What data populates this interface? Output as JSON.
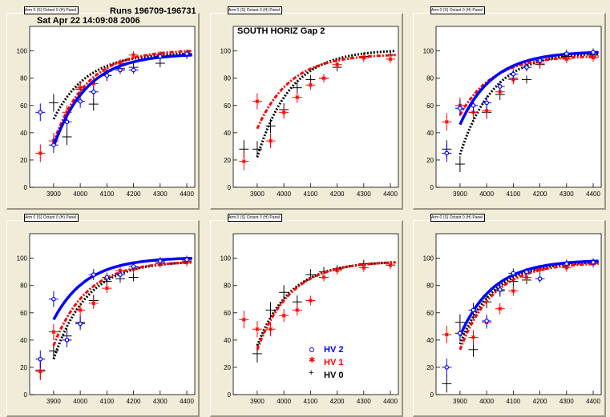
{
  "header": {
    "runs": "Runs 196709-196731",
    "date": "Sat Apr 22 14:09:08 2006",
    "panel2_label": "SOUTH HORIZ Gap 2"
  },
  "legend": [
    {
      "label": "HV 2",
      "color": "#0000ff",
      "marker": "circle"
    },
    {
      "label": "HV 1",
      "color": "#ff0000",
      "marker": "star"
    },
    {
      "label": "HV 0",
      "color": "#000000",
      "marker": "plus"
    }
  ],
  "colors": {
    "hv2": "#0000ff",
    "hv1": "#ff0000",
    "hv0": "#000000",
    "background": "#f0ecd8"
  },
  "chart_data": [
    {
      "type": "scatter",
      "title": "Arm 0 (S) Octant 0 (H) Panel 0",
      "xlim": [
        3810,
        4430
      ],
      "ylim": [
        0,
        118
      ],
      "xticks": [
        3900,
        4000,
        4100,
        4200,
        4300,
        4400
      ],
      "yticks": [
        0,
        20,
        40,
        60,
        80,
        100
      ],
      "series": [
        {
          "name": "HV 2",
          "x": [
            3850,
            3900,
            3950,
            4000,
            4050,
            4100,
            4150,
            4200,
            4300,
            4400
          ],
          "y": [
            55,
            31,
            48,
            63,
            70,
            82,
            86,
            86,
            96,
            98
          ],
          "fit": [
            3900,
            4420,
            30,
            97
          ]
        },
        {
          "name": "HV 1",
          "x": [
            3850,
            3900,
            3950,
            4000,
            4050,
            4100,
            4150,
            4200,
            4300,
            4400
          ],
          "y": [
            25,
            34,
            55,
            73,
            76,
            85,
            91,
            97,
            97,
            98
          ],
          "fit": [
            3900,
            4420,
            33,
            100
          ]
        },
        {
          "name": "HV 0",
          "x": [
            3900,
            3950,
            4000,
            4050,
            4100,
            4150,
            4200,
            4300,
            4400
          ],
          "y": [
            62,
            37,
            72,
            61,
            82,
            87,
            88,
            91,
            97
          ],
          "fit": [
            3900,
            4420,
            50,
            98
          ]
        }
      ]
    },
    {
      "type": "scatter",
      "title": "Arm 0 (S) Octant 0 (H) Panel 1",
      "xlim": [
        3810,
        4430
      ],
      "ylim": [
        0,
        118
      ],
      "xticks": [
        3900,
        4000,
        4100,
        4200,
        4300,
        4400
      ],
      "yticks": [
        0,
        20,
        40,
        60,
        80,
        100
      ],
      "series": [
        {
          "name": "HV 2",
          "x": [],
          "y": [],
          "fit": null
        },
        {
          "name": "HV 1",
          "x": [
            3850,
            3900,
            3950,
            4000,
            4050,
            4100,
            4150,
            4200,
            4300,
            4400
          ],
          "y": [
            19,
            63,
            34,
            55,
            66,
            75,
            80,
            90,
            95,
            94
          ],
          "fit": [
            3900,
            4420,
            43,
            97
          ]
        },
        {
          "name": "HV 0",
          "x": [
            3850,
            3900,
            3950,
            4000,
            4050,
            4100,
            4150,
            4200,
            4300,
            4400
          ],
          "y": [
            28,
            28,
            45,
            57,
            73,
            79,
            80,
            88,
            96,
            97
          ],
          "fit": [
            3900,
            4420,
            22,
            100
          ]
        }
      ]
    },
    {
      "type": "scatter",
      "title": "Arm 0 (S) Octant 0 (H) Panel 2",
      "xlim": [
        3810,
        4430
      ],
      "ylim": [
        0,
        118
      ],
      "xticks": [
        3900,
        4000,
        4100,
        4200,
        4300,
        4400
      ],
      "yticks": [
        0,
        20,
        40,
        60,
        80,
        100
      ],
      "series": [
        {
          "name": "HV 2",
          "x": [
            3850,
            3900,
            3950,
            4000,
            4050,
            4100,
            4150,
            4200,
            4300,
            4400
          ],
          "y": [
            25,
            58,
            60,
            62,
            74,
            83,
            88,
            93,
            98,
            99
          ],
          "fit": [
            3900,
            4420,
            46,
            99
          ]
        },
        {
          "name": "HV 1",
          "x": [
            3850,
            3900,
            3950,
            4000,
            4050,
            4100,
            4150,
            4200,
            4300,
            4400
          ],
          "y": [
            48,
            60,
            55,
            56,
            70,
            79,
            88,
            91,
            94,
            95
          ],
          "fit": [
            3900,
            4420,
            53,
            96
          ]
        },
        {
          "name": "HV 0",
          "x": [
            3850,
            3900,
            3950,
            4000,
            4050,
            4100,
            4150,
            4200,
            4300,
            4400
          ],
          "y": [
            28,
            17,
            55,
            55,
            68,
            80,
            79,
            90,
            96,
            97
          ],
          "fit": [
            3900,
            4420,
            24,
            98
          ]
        }
      ]
    },
    {
      "type": "scatter",
      "title": "Arm 0 (S) Octant 0 (H) Panel 5",
      "xlim": [
        3810,
        4430
      ],
      "ylim": [
        0,
        118
      ],
      "xticks": [
        3900,
        4000,
        4100,
        4200,
        4300,
        4400
      ],
      "yticks": [
        0,
        20,
        40,
        60,
        80,
        100
      ],
      "series": [
        {
          "name": "HV 2",
          "x": [
            3850,
            3900,
            3950,
            4000,
            4050,
            4100,
            4150,
            4200,
            4300,
            4400
          ],
          "y": [
            26,
            70,
            40,
            52,
            88,
            86,
            88,
            94,
            98,
            99
          ],
          "fit": [
            3900,
            4420,
            55,
            100
          ]
        },
        {
          "name": "HV 1",
          "x": [
            3850,
            3900,
            3950,
            4000,
            4050,
            4100,
            4150,
            4200,
            4300,
            4400
          ],
          "y": [
            17,
            46,
            40,
            62,
            67,
            78,
            91,
            92,
            96,
            97
          ],
          "fit": [
            3900,
            4420,
            36,
            97
          ]
        },
        {
          "name": "HV 0",
          "x": [
            3850,
            3900,
            3950,
            4000,
            4050,
            4100,
            4150,
            4200,
            4300,
            4400
          ],
          "y": [
            18,
            32,
            43,
            53,
            69,
            83,
            85,
            86,
            97,
            98
          ],
          "fit": [
            3900,
            4420,
            26,
            97
          ]
        }
      ]
    },
    {
      "type": "scatter",
      "title": "Arm 0 (S) Octant 0 (H) Panel 4",
      "xlim": [
        3810,
        4430
      ],
      "ylim": [
        0,
        118
      ],
      "xticks": [
        3900,
        4000,
        4100,
        4200,
        4300,
        4400
      ],
      "yticks": [
        0,
        20,
        40,
        60,
        80,
        100
      ],
      "series": [
        {
          "name": "HV 2",
          "x": [],
          "y": [],
          "fit": null
        },
        {
          "name": "HV 1",
          "x": [
            3850,
            3900,
            3950,
            4000,
            4050,
            4100,
            4150,
            4200,
            4300,
            4400
          ],
          "y": [
            55,
            48,
            48,
            58,
            62,
            69,
            86,
            91,
            93,
            95
          ],
          "fit": [
            3900,
            4420,
            33,
            97
          ]
        },
        {
          "name": "HV 0",
          "x": [
            3900,
            3950,
            4000,
            4050,
            4100,
            4150,
            4200,
            4300,
            4400
          ],
          "y": [
            30,
            62,
            75,
            68,
            88,
            90,
            92,
            96,
            95
          ],
          "fit": [
            3900,
            4420,
            36,
            97
          ]
        }
      ]
    },
    {
      "type": "scatter",
      "title": "Arm 0 (S) Octant 0 (H) Panel 3",
      "xlim": [
        3810,
        4430
      ],
      "ylim": [
        0,
        118
      ],
      "xticks": [
        3900,
        4000,
        4100,
        4200,
        4300,
        4400
      ],
      "yticks": [
        0,
        20,
        40,
        60,
        80,
        100
      ],
      "series": [
        {
          "name": "HV 2",
          "x": [
            3850,
            3900,
            3950,
            4000,
            4050,
            4100,
            4150,
            4200,
            4300,
            4400
          ],
          "y": [
            20,
            45,
            62,
            54,
            77,
            89,
            90,
            85,
            96,
            97
          ],
          "fit": [
            3900,
            4420,
            43,
            98
          ]
        },
        {
          "name": "HV 1",
          "x": [
            3850,
            3900,
            3950,
            4000,
            4050,
            4100,
            4150,
            4200,
            4300,
            4400
          ],
          "y": [
            44,
            45,
            42,
            53,
            63,
            76,
            86,
            92,
            93,
            96
          ],
          "fit": [
            3900,
            4420,
            33,
            96
          ]
        },
        {
          "name": "HV 0",
          "x": [
            3850,
            3900,
            3950,
            4000,
            4050,
            4100,
            4150,
            4200,
            4300,
            4400
          ],
          "y": [
            8,
            53,
            33,
            68,
            76,
            83,
            84,
            91,
            96,
            97
          ],
          "fit": [
            3900,
            4420,
            37,
            97
          ]
        }
      ]
    }
  ]
}
